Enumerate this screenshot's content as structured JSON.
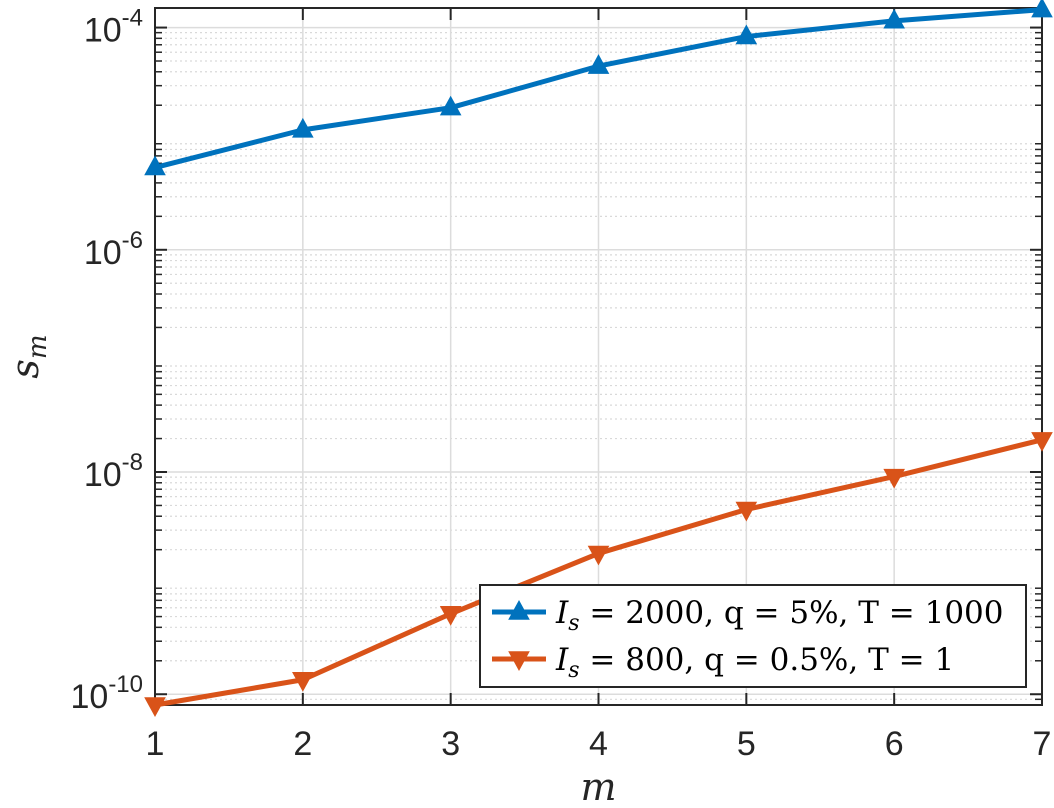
{
  "chart_data": {
    "type": "line",
    "xlabel": "m",
    "ylabel": "s_m",
    "ylabel_base": "s",
    "ylabel_sub": "m",
    "xlim": [
      1,
      7
    ],
    "ylim": [
      8e-11,
      0.00015
    ],
    "yscale": "log",
    "grid": "major-and-minor",
    "legend_position": "bottom-right",
    "x": [
      1,
      2,
      3,
      4,
      5,
      6,
      7
    ],
    "x_ticks": [
      "1",
      "2",
      "3",
      "4",
      "5",
      "6",
      "7"
    ],
    "y_ticks": [
      {
        "value": 1e-10,
        "base": "10",
        "exp": "-10"
      },
      {
        "value": 1e-08,
        "base": "10",
        "exp": "-8"
      },
      {
        "value": 1e-06,
        "base": "10",
        "exp": "-6"
      },
      {
        "value": 0.0001,
        "base": "10",
        "exp": "-4"
      }
    ],
    "series": [
      {
        "name": "I_s = 2000, q = 5%, T = 1000",
        "legend_parts": {
          "I": "I",
          "sub": "s",
          "rest": " = 2000, q = 5%, T = 1000"
        },
        "color": "#0072BD",
        "marker": "triangle-up",
        "values": [
          5.5e-06,
          1.2e-05,
          1.9e-05,
          4.5e-05,
          8.3e-05,
          0.000115,
          0.000145
        ]
      },
      {
        "name": "I_s = 800, q = 0.5%, T = 1",
        "legend_parts": {
          "I": "I",
          "sub": "s",
          "rest": " = 800, q = 0.5%, T = 1"
        },
        "color": "#D95319",
        "marker": "triangle-down",
        "values": [
          8e-11,
          1.35e-10,
          5.3e-10,
          1.85e-09,
          4.6e-09,
          9.1e-09,
          1.95e-08
        ]
      }
    ]
  }
}
